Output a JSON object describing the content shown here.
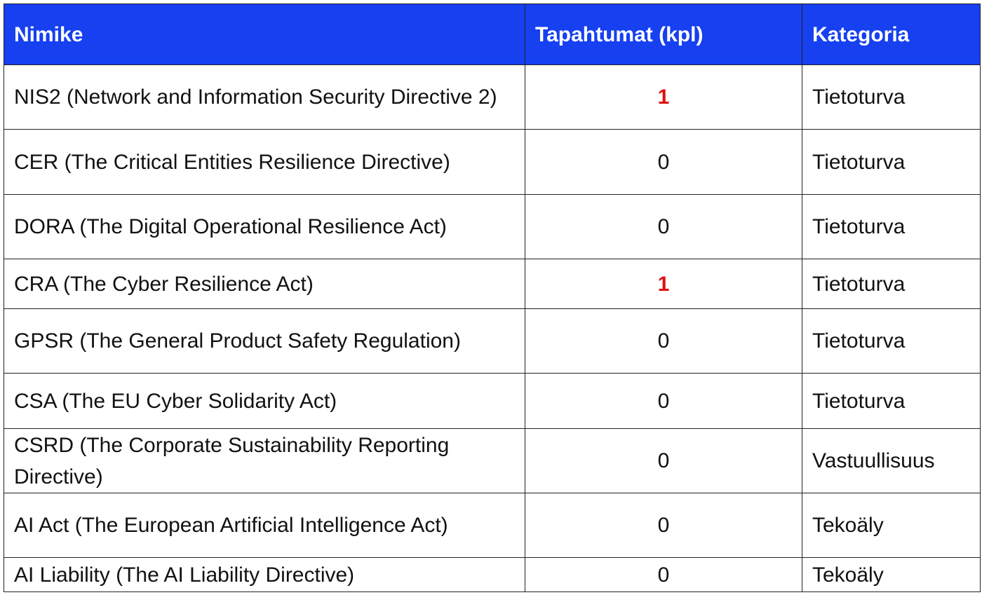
{
  "table": {
    "headers": [
      "Nimike",
      "Tapahtumat (kpl)",
      "Kategoria"
    ],
    "rows": [
      [
        "NIS2 (Network and Information Security Directive 2)",
        1,
        "Tietoturva"
      ],
      [
        "CER (The Critical Entities Resilience Directive)",
        0,
        "Tietoturva"
      ],
      [
        "DORA (The Digital Operational Resilience Act)",
        0,
        "Tietoturva"
      ],
      [
        "CRA (The Cyber Resilience Act)",
        1,
        "Tietoturva"
      ],
      [
        "GPSR (The General Product Safety Regulation)",
        0,
        "Tietoturva"
      ],
      [
        "CSA (The EU Cyber Solidarity Act)",
        0,
        "Tietoturva"
      ],
      [
        "CSRD (The Corporate Sustainability Reporting Directive)",
        0,
        "Vastuullisuus"
      ],
      [
        "AI Act (The European Artificial Intelligence Act)",
        0,
        "Tekoäly"
      ],
      [
        "AI Liability (The AI Liability Directive)",
        0,
        "Tekoäly"
      ]
    ]
  }
}
